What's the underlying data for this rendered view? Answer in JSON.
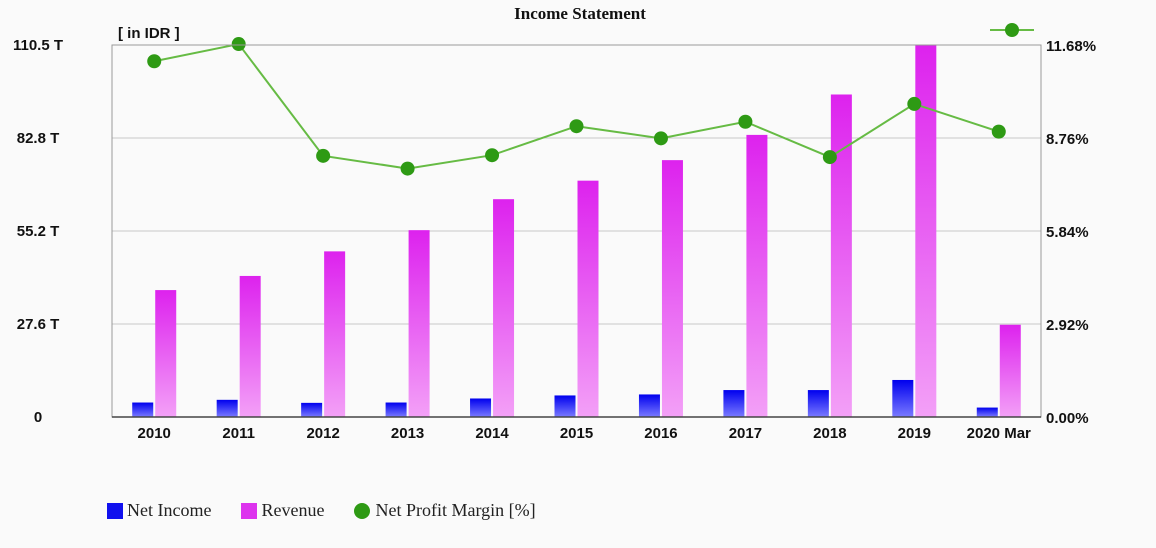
{
  "chart_data": {
    "type": "bar",
    "title": "Income Statement",
    "unit_label": "[ in IDR ]",
    "categories": [
      "2010",
      "2011",
      "2012",
      "2013",
      "2014",
      "2015",
      "2016",
      "2017",
      "2018",
      "2019",
      "2020 Mar"
    ],
    "series": [
      {
        "name": "Net Income",
        "type": "bar",
        "axis": "left",
        "values": [
          4.3,
          5.1,
          4.2,
          4.3,
          5.5,
          6.4,
          6.7,
          8.0,
          8.0,
          11.0,
          2.8
        ]
      },
      {
        "name": "Revenue",
        "type": "bar",
        "axis": "left",
        "values": [
          37.7,
          41.9,
          49.2,
          55.5,
          64.7,
          70.2,
          76.3,
          83.8,
          95.8,
          110.5,
          27.4
        ]
      },
      {
        "name": "Net Profit Margin [%]",
        "type": "line",
        "axis": "right",
        "values": [
          11.17,
          11.71,
          8.2,
          7.8,
          8.22,
          9.13,
          8.75,
          9.27,
          8.16,
          9.83,
          8.96
        ]
      }
    ],
    "left_axis": {
      "min": 0,
      "max": 110.5,
      "ticks": [
        "0",
        "27.6 T",
        "55.2 T",
        "82.8 T",
        "110.5 T"
      ]
    },
    "right_axis": {
      "min": 0,
      "max": 11.68,
      "ticks": [
        "0.00%",
        "2.92%",
        "5.84%",
        "8.76%",
        "11.68%"
      ]
    },
    "grid": true,
    "legend_placement": "bottom-left",
    "colors": {
      "net_income_top": "#0000ee",
      "net_income_bottom": "#7a7aff",
      "revenue_top": "#dd22ee",
      "revenue_bottom": "#f3a0f7",
      "margin_line": "#66bb44",
      "margin_dot": "#2e9a14"
    }
  }
}
